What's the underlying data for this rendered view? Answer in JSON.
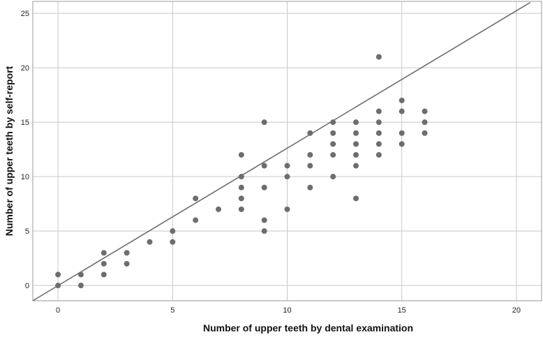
{
  "chart_data": {
    "type": "scatter",
    "xlabel": "Number of upper teeth by dental examination",
    "ylabel": "Number of upper teeth by self-report",
    "xlim": [
      -1.1,
      21.1
    ],
    "ylim": [
      -1.4,
      26.1
    ],
    "x_ticks": [
      0,
      5,
      10,
      15,
      20
    ],
    "y_ticks": [
      0,
      5,
      10,
      15,
      20,
      25
    ],
    "grid": "major gridlines at x and y ticks",
    "reference_line": {
      "type": "identity",
      "from": [
        -1.1,
        -1.4
      ],
      "to": [
        20.6,
        26.0
      ]
    },
    "colors": {
      "points": "#6d6d6d",
      "line": "#6d6d6d",
      "grid": "#c8c8c8",
      "frame": "#999999"
    },
    "points": [
      {
        "x": 0,
        "y": 1
      },
      {
        "x": 0,
        "y": 0
      },
      {
        "x": 1,
        "y": 1
      },
      {
        "x": 1,
        "y": 0
      },
      {
        "x": 2,
        "y": 3
      },
      {
        "x": 2,
        "y": 2
      },
      {
        "x": 2,
        "y": 1
      },
      {
        "x": 3,
        "y": 3
      },
      {
        "x": 3,
        "y": 2
      },
      {
        "x": 4,
        "y": 4
      },
      {
        "x": 5,
        "y": 5
      },
      {
        "x": 5,
        "y": 4
      },
      {
        "x": 6,
        "y": 8
      },
      {
        "x": 6,
        "y": 6
      },
      {
        "x": 7,
        "y": 7
      },
      {
        "x": 8,
        "y": 12
      },
      {
        "x": 8,
        "y": 10
      },
      {
        "x": 8,
        "y": 9
      },
      {
        "x": 8,
        "y": 8
      },
      {
        "x": 8,
        "y": 7
      },
      {
        "x": 9,
        "y": 15
      },
      {
        "x": 9,
        "y": 11
      },
      {
        "x": 9,
        "y": 9
      },
      {
        "x": 9,
        "y": 6
      },
      {
        "x": 9,
        "y": 5
      },
      {
        "x": 10,
        "y": 11
      },
      {
        "x": 10,
        "y": 10
      },
      {
        "x": 10,
        "y": 7
      },
      {
        "x": 11,
        "y": 14
      },
      {
        "x": 11,
        "y": 12
      },
      {
        "x": 11,
        "y": 11
      },
      {
        "x": 11,
        "y": 9
      },
      {
        "x": 12,
        "y": 15
      },
      {
        "x": 12,
        "y": 14
      },
      {
        "x": 12,
        "y": 13
      },
      {
        "x": 12,
        "y": 12
      },
      {
        "x": 12,
        "y": 10
      },
      {
        "x": 13,
        "y": 15
      },
      {
        "x": 13,
        "y": 14
      },
      {
        "x": 13,
        "y": 13
      },
      {
        "x": 13,
        "y": 12
      },
      {
        "x": 13,
        "y": 11
      },
      {
        "x": 13,
        "y": 8
      },
      {
        "x": 14,
        "y": 21
      },
      {
        "x": 14,
        "y": 16
      },
      {
        "x": 14,
        "y": 15
      },
      {
        "x": 14,
        "y": 14
      },
      {
        "x": 14,
        "y": 13
      },
      {
        "x": 14,
        "y": 12
      },
      {
        "x": 15,
        "y": 17
      },
      {
        "x": 15,
        "y": 16
      },
      {
        "x": 15,
        "y": 14
      },
      {
        "x": 15,
        "y": 13
      },
      {
        "x": 16,
        "y": 16
      },
      {
        "x": 16,
        "y": 15
      },
      {
        "x": 16,
        "y": 14
      }
    ]
  }
}
